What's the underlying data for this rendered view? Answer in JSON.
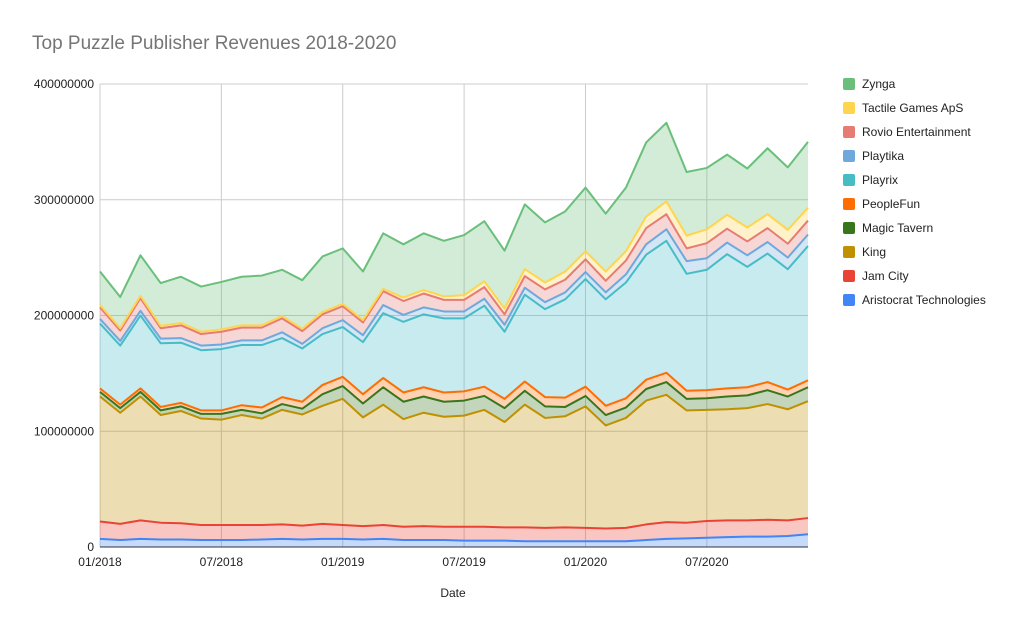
{
  "chart_data": {
    "type": "area",
    "stacked": true,
    "title": "Top Puzzle Publisher Revenues 2018-2020",
    "xlabel": "Date",
    "ylabel": "",
    "ylim": [
      0,
      400000000
    ],
    "yticks": [
      "0",
      "100000000",
      "200000000",
      "300000000",
      "400000000"
    ],
    "ytick_values": [
      0,
      100000000,
      200000000,
      300000000,
      400000000
    ],
    "xtick_labels": [
      "01/2018",
      "07/2018",
      "01/2019",
      "07/2019",
      "01/2020",
      "07/2020"
    ],
    "xtick_indices": [
      0,
      6,
      12,
      18,
      24,
      30
    ],
    "x": [
      "01/2018",
      "02/2018",
      "03/2018",
      "04/2018",
      "05/2018",
      "06/2018",
      "07/2018",
      "08/2018",
      "09/2018",
      "10/2018",
      "11/2018",
      "12/2018",
      "01/2019",
      "02/2019",
      "03/2019",
      "04/2019",
      "05/2019",
      "06/2019",
      "07/2019",
      "08/2019",
      "09/2019",
      "10/2019",
      "11/2019",
      "12/2019",
      "01/2020",
      "02/2020",
      "03/2020",
      "04/2020",
      "05/2020",
      "06/2020",
      "07/2020",
      "08/2020",
      "09/2020",
      "10/2020",
      "11/2020",
      "12/2020"
    ],
    "legend_position": "right",
    "series": [
      {
        "name": "Aristocrat Technologies",
        "color": "#4285f4",
        "values": [
          7000000,
          6000000,
          7000000,
          6500000,
          6500000,
          6000000,
          6000000,
          6000000,
          6500000,
          7000000,
          6500000,
          7000000,
          7000000,
          6500000,
          7000000,
          6000000,
          6000000,
          6000000,
          5500000,
          5500000,
          5500000,
          5000000,
          5000000,
          5000000,
          5000000,
          5000000,
          5000000,
          6000000,
          7000000,
          7500000,
          8000000,
          8500000,
          9000000,
          9000000,
          9500000,
          11000000
        ]
      },
      {
        "name": "Jam City",
        "color": "#ea4335",
        "values": [
          15000000,
          14000000,
          16000000,
          14500000,
          14000000,
          13000000,
          13000000,
          13000000,
          12500000,
          12500000,
          12000000,
          13000000,
          12000000,
          11500000,
          12000000,
          11500000,
          12000000,
          11500000,
          12000000,
          12000000,
          11500000,
          12000000,
          11500000,
          12000000,
          11500000,
          11000000,
          11500000,
          13500000,
          14500000,
          13500000,
          14500000,
          14500000,
          14000000,
          14500000,
          13500000,
          14000000
        ]
      },
      {
        "name": "King",
        "color": "#bf9000",
        "values": [
          108000000,
          96000000,
          107000000,
          93000000,
          97000000,
          92000000,
          91000000,
          95000000,
          92000000,
          99000000,
          96000000,
          102000000,
          109000000,
          94000000,
          104000000,
          93000000,
          98000000,
          95000000,
          96000000,
          101000000,
          91000000,
          106000000,
          95000000,
          96000000,
          105000000,
          89000000,
          95000000,
          107000000,
          110000000,
          97000000,
          96000000,
          96000000,
          97000000,
          100000000,
          96000000,
          101000000
        ]
      },
      {
        "name": "Magic Tavern",
        "color": "#38761d",
        "values": [
          4000000,
          4000000,
          4000000,
          4000000,
          4000000,
          4000000,
          5000000,
          4500000,
          4500000,
          5000000,
          5000000,
          10000000,
          11000000,
          12000000,
          15000000,
          15000000,
          14000000,
          13000000,
          13000000,
          12000000,
          12000000,
          12000000,
          10000000,
          8000000,
          9000000,
          9000000,
          9000000,
          10000000,
          11000000,
          10000000,
          10000000,
          11000000,
          11000000,
          12000000,
          11000000,
          12000000
        ]
      },
      {
        "name": "PeopleFun",
        "color": "#ff6d01",
        "values": [
          3000000,
          3000000,
          3000000,
          3000000,
          3000000,
          3000000,
          3000000,
          4000000,
          5000000,
          6000000,
          6000000,
          8000000,
          8000000,
          8000000,
          8000000,
          8000000,
          8000000,
          8000000,
          8000000,
          8000000,
          8000000,
          8000000,
          8000000,
          8000000,
          8000000,
          8000000,
          8000000,
          8000000,
          8000000,
          7000000,
          7000000,
          7000000,
          7000000,
          7000000,
          6000000,
          6000000
        ]
      },
      {
        "name": "Playrix",
        "color": "#46bdc6",
        "values": [
          56000000,
          51000000,
          63000000,
          55000000,
          52000000,
          52000000,
          53000000,
          52000000,
          54000000,
          51000000,
          46000000,
          44000000,
          43000000,
          45000000,
          56000000,
          61000000,
          63000000,
          64000000,
          63000000,
          70000000,
          58000000,
          75000000,
          76000000,
          85000000,
          93000000,
          92000000,
          100000000,
          108000000,
          114000000,
          101000000,
          104000000,
          116000000,
          104000000,
          111000000,
          104000000,
          116000000
        ]
      },
      {
        "name": "Playtika",
        "color": "#6fa8dc",
        "values": [
          4000000,
          4000000,
          4000000,
          4000000,
          4000000,
          4000000,
          4000000,
          4000000,
          4000000,
          5000000,
          4000000,
          5000000,
          6000000,
          6000000,
          7000000,
          6000000,
          6000000,
          6000000,
          6000000,
          6000000,
          6000000,
          6000000,
          6000000,
          6000000,
          6000000,
          6000000,
          7000000,
          9000000,
          10000000,
          11000000,
          10000000,
          10000000,
          10000000,
          10000000,
          10000000,
          10000000
        ]
      },
      {
        "name": "Rovio Entertainment",
        "color": "#e67c73",
        "values": [
          10000000,
          9000000,
          11000000,
          9000000,
          11000000,
          10000000,
          11000000,
          11000000,
          11000000,
          12000000,
          11000000,
          12000000,
          12000000,
          11000000,
          12000000,
          12000000,
          12000000,
          10000000,
          10000000,
          10000000,
          9000000,
          10000000,
          11000000,
          11000000,
          11000000,
          10000000,
          12000000,
          14000000,
          13000000,
          11000000,
          13000000,
          12000000,
          12000000,
          12000000,
          12000000,
          12000000
        ]
      },
      {
        "name": "Tactile Games ApS",
        "color": "#ffd54f",
        "values": [
          2000000,
          2000000,
          2000000,
          2000000,
          2000000,
          2000000,
          2000000,
          2000000,
          2000000,
          2000000,
          2000000,
          2000000,
          2000000,
          2000000,
          2000000,
          3000000,
          3000000,
          3000000,
          4000000,
          5000000,
          5000000,
          6000000,
          6000000,
          7000000,
          7000000,
          8000000,
          8000000,
          10000000,
          11000000,
          11000000,
          12000000,
          12000000,
          12000000,
          12000000,
          12000000,
          11000000
        ]
      },
      {
        "name": "Zynga",
        "color": "#6abf7b",
        "values": [
          29000000,
          27000000,
          35000000,
          37000000,
          40000000,
          39000000,
          41000000,
          42000000,
          43000000,
          40000000,
          42000000,
          48000000,
          48000000,
          42000000,
          48000000,
          46000000,
          49000000,
          48000000,
          52000000,
          52000000,
          50000000,
          56000000,
          52000000,
          52000000,
          55000000,
          50000000,
          55000000,
          64000000,
          68000000,
          55000000,
          53000000,
          52000000,
          51000000,
          57000000,
          54000000,
          57000000
        ]
      }
    ]
  }
}
